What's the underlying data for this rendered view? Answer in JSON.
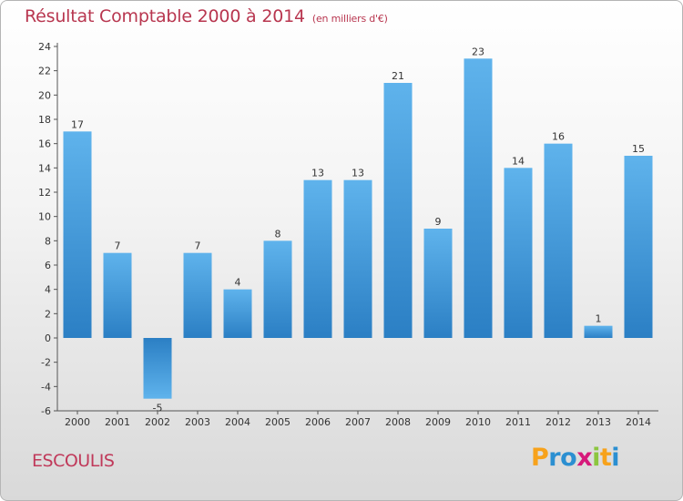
{
  "header": {
    "title": "Résultat Comptable 2000 à 2014",
    "subtitle": "(en milliers d'€)"
  },
  "commune": "ESCOULIS",
  "logo": {
    "letters": [
      "P",
      "r",
      "o",
      "x",
      "i",
      "t",
      "i"
    ],
    "colors": [
      "#f7a21b",
      "#2b8fd1",
      "#2b8fd1",
      "#d6197a",
      "#8cc63f",
      "#f7a21b",
      "#2b8fd1"
    ]
  },
  "colors": {
    "bar_top": "#5fb3ec",
    "bar_bottom": "#2b7fc4",
    "neg_top": "#2b7fc4",
    "neg_bottom": "#5fb3ec"
  },
  "chart_data": {
    "type": "bar",
    "title": "Résultat Comptable 2000 à 2014",
    "subtitle": "(en milliers d'€)",
    "categories": [
      "2000",
      "2001",
      "2002",
      "2003",
      "2004",
      "2005",
      "2006",
      "2007",
      "2008",
      "2009",
      "2010",
      "2011",
      "2012",
      "2013",
      "2014"
    ],
    "values": [
      17,
      7,
      -5,
      7,
      4,
      8,
      13,
      13,
      21,
      9,
      23,
      14,
      16,
      1,
      15
    ],
    "ylim": [
      -6,
      24
    ],
    "yticks": [
      -6,
      -4,
      -2,
      0,
      2,
      4,
      6,
      8,
      10,
      12,
      14,
      16,
      18,
      20,
      22,
      24
    ],
    "xlabel": "",
    "ylabel": "",
    "grid": false
  }
}
